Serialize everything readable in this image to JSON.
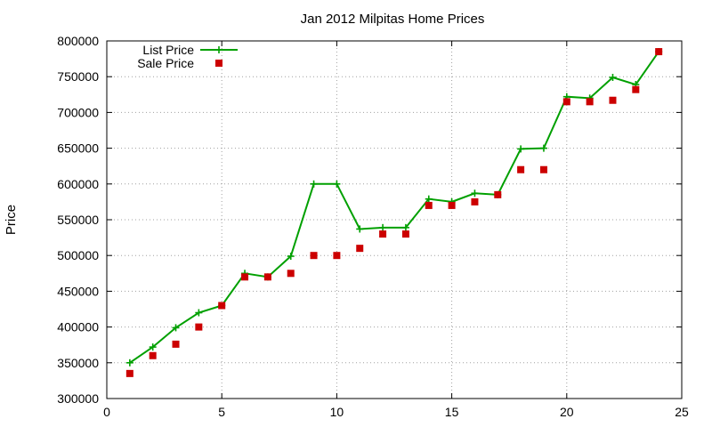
{
  "chart_data": {
    "type": "line",
    "title": "Jan 2012 Milpitas Home Prices",
    "xlabel": "",
    "ylabel": "Price",
    "xlim": [
      0,
      25
    ],
    "ylim": [
      300000,
      800000
    ],
    "x_ticks": [
      0,
      5,
      10,
      15,
      20,
      25
    ],
    "y_ticks": [
      300000,
      350000,
      400000,
      450000,
      500000,
      550000,
      600000,
      650000,
      700000,
      750000,
      800000
    ],
    "grid": true,
    "legend_position": "top-left",
    "series": [
      {
        "name": "List Price",
        "style": "linespoints",
        "marker": "plus",
        "color": "#00a000",
        "x": [
          1,
          2,
          3,
          4,
          5,
          6,
          7,
          8,
          9,
          10,
          11,
          12,
          13,
          14,
          15,
          16,
          17,
          18,
          19,
          20,
          21,
          22,
          23,
          24
        ],
        "y": [
          350000,
          372000,
          399000,
          420000,
          430000,
          475000,
          470000,
          499000,
          600000,
          600000,
          537000,
          539000,
          539000,
          579000,
          575000,
          587000,
          585000,
          649000,
          650000,
          722000,
          720000,
          749000,
          739000,
          785000
        ]
      },
      {
        "name": "Sale Price",
        "style": "points",
        "marker": "square",
        "color": "#cc0000",
        "x": [
          1,
          2,
          3,
          4,
          5,
          6,
          7,
          8,
          9,
          10,
          11,
          12,
          13,
          14,
          15,
          16,
          17,
          18,
          19,
          20,
          21,
          22,
          23,
          24
        ],
        "y": [
          335000,
          360000,
          376000,
          400000,
          430000,
          470000,
          470000,
          475000,
          500000,
          500000,
          510000,
          530000,
          530000,
          570000,
          570000,
          575000,
          585000,
          620000,
          620000,
          715000,
          715000,
          717000,
          732000,
          785000
        ]
      }
    ]
  }
}
